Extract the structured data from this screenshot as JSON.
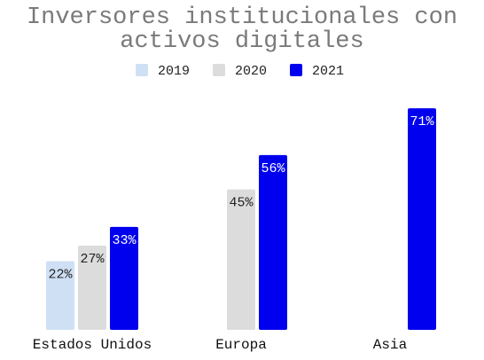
{
  "chart_data": {
    "type": "bar",
    "title_lines": [
      "Inversores institucionales con",
      "activos digitales"
    ],
    "categories": [
      "Estados Unidos",
      "Europa",
      "Asia"
    ],
    "series": [
      {
        "name": "2019",
        "color": "#cfe0f5",
        "label_color": "#222222",
        "values": [
          22,
          null,
          null
        ],
        "labels": [
          "22%",
          "",
          ""
        ]
      },
      {
        "name": "2020",
        "color": "#dcdcdc",
        "label_color": "#222222",
        "values": [
          27,
          45,
          null
        ],
        "labels": [
          "27%",
          "45%",
          ""
        ]
      },
      {
        "name": "2021",
        "color": "#0000ee",
        "label_color": "#ffffff",
        "values": [
          33,
          56,
          71
        ],
        "labels": [
          "33%",
          "56%",
          "71%"
        ]
      }
    ],
    "ylim": [
      0,
      78
    ],
    "grid": false,
    "legend_position": "top-center",
    "xlabel": "",
    "ylabel": ""
  }
}
